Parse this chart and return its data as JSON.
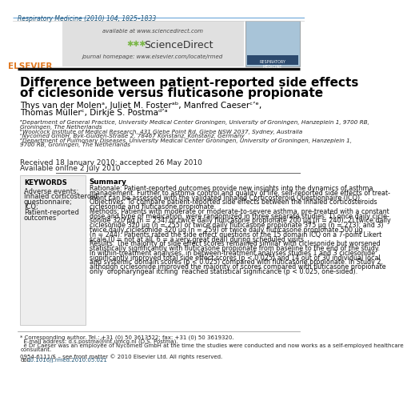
{
  "bg_color": "#ffffff",
  "header_journal": "Respiratory Medicine (2010) 104, 1825–1833",
  "header_journal_color": "#1a5276",
  "header_available": "available at www.sciencedirect.com",
  "header_journal_hp": "journal homepage: www.elsevier.com/locate/rmed",
  "elsevier_text": "ELSEVIER",
  "elsevier_color": "#e07820",
  "title_line1": "Difference between patient-reported side effects",
  "title_line2": "of ciclesonide versus fluticasone propionate",
  "title_color": "#000000",
  "title_fontsize": 11.0,
  "authors_line1": "Thys van der Molenᵃ, Juliet M. Fosterᵃᵇ, Manfred Caeserᶜ’ᵉ,",
  "authors_line2": "Thomas Müllerᶜ, Dirkje S. Postmaᵈ’ᵃ",
  "authors_color": "#000000",
  "authors_fontsize": 7.5,
  "affiliations": [
    "ᵃDepartment of General Practice, University Medical Center Groningen, University of Groningen, Hanzeplein 1, 9700 RB,",
    "Groningen, The Netherlands",
    "ᵇWoolcock Institute of Medical Research, 431 Glebe Point Rd, Glebe NSW 2037, Sydney, Australia",
    "ᶜNycomed GmbH, Byk-Gulden-Straße 2, 78467 Konstanz, Konstanz, Germany",
    "ᵈDepartment of Pulmonary Diseases, University Medical Center Groningen, University of Groningen, Hanzeplein 1,",
    "9700 RB, Groningen, The Netherlands"
  ],
  "affiliations_fontsize": 5.2,
  "received": "Received 18 January 2010; accepted 26 May 2010",
  "available_online": "Available online 2 July 2010",
  "dates_fontsize": 6.5,
  "keywords_title": "KEYWORDS",
  "keywords_lines": [
    "Adverse events;",
    "Inhaled corticosteroid",
    "questionnaire;",
    "ICQ;",
    "Patient-reported",
    "outcomes"
  ],
  "keywords_fontsize": 6.0,
  "summary_title": "Summary",
  "summary_lines": [
    "Rationale: Patient-reported outcomes provide new insights into the dynamics of asthma",
    "management. Further to asthma control and quality of life, self-reported side effects of treat-",
    "ment can be assessed with the validated Inhaled Corticosteroid Questionnaire (ICQ).",
    "Objectives: To compare patient-reported side effects between the inhaled corticosteroids",
    "ciclesonide and fluticasone propionate.",
    "Methods: Patients with moderate or moderate-to-severe asthma, pre-treated with a constant",
    "dose and type of medication, were randomized in three separate studies: 1) once daily cicle-",
    "sonide 320 μg (n = 234) or twice daily fluticasone propionate 200 μg (n = 240); 2) twice daily",
    "ciclesonide 320 μg (n = 255) or twice daily fluticasone propionate 375 μg (n = 273); and 3)",
    "twice daily ciclesonide 320 μg (n = 259) or twice daily fluticasone propionate 500 μg",
    "(n = 244). Patients rated the side effect questions of the 15 domain ICQ on a 7-point Likert",
    "scale (0 = not at all, 6 = a very great deal) during scheduled visits.",
    "Results: The majority of side effect scores remained similar with ciclesonide but worsened",
    "statistically significantly with fluticasone propionate from baseline to the end of the study.",
    "In within-treatment analyses, in between-treatment analyses studies 1 and 3 ciclesonide",
    "significantly improved total side effect scores (p < 0.025) and 14 out of 30 individual local",
    "and systemic domain scores (p < 0.025) compared with fluticasone propionate. In Study 2,",
    "although ciclesonide improved the majority of scores compared with fluticasone propionate",
    "only ‘oropharyngeal itching’ reached statistical significance (p < 0.025, one-sided)."
  ],
  "summary_fontsize": 5.8,
  "footer_star": "* Corresponding author. Tel.: +31 (0) 50 3613522; fax: +31 (0) 50 3619320.",
  "footer_email": "  E-mail address: d.s.postma@int.umcg.nl (D.S. Postma).",
  "footer_e": "  e Dr Caeser was an employee of Nycomed GmbH at the time the studies were conducted and now works as a self-employed healthcare",
  "footer_consultant": "consultant.",
  "footer_issn": "0954-6111/$ – see front matter © 2010 Elsevier Ltd. All rights reserved.",
  "footer_doi": "doi:10.1016/j.rmed.2010.05.021",
  "footer_fontsize": 5.0,
  "keywords_box_color": "#eeeeee",
  "header_gray_color": "#e0e0e0",
  "divider_color": "#333333",
  "top_rule_color": "#5b9bd5",
  "sd_green": "#7ab648",
  "doi_color": "#1a5276"
}
